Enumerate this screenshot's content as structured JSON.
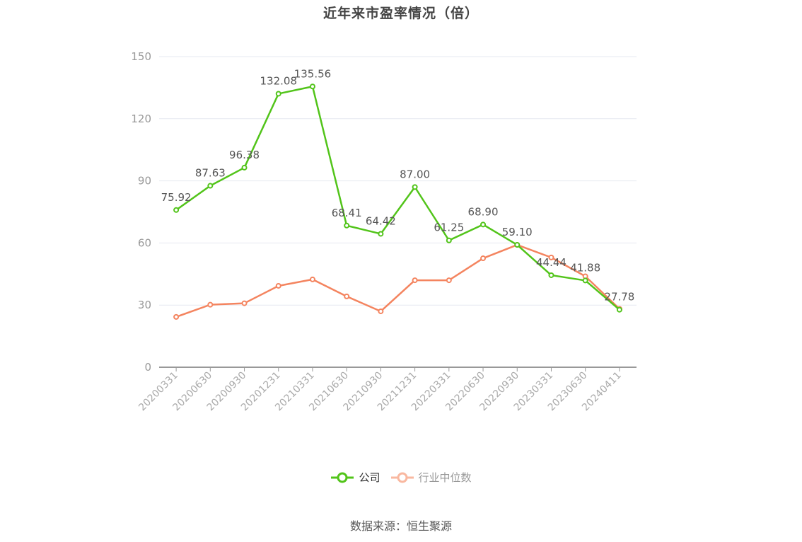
{
  "title": "近年来市盈率情况（倍）",
  "legend": {
    "company": "公司",
    "industry": "行业中位数"
  },
  "source": "数据来源：恒生聚源",
  "colors": {
    "company": "#52c41a",
    "industry": "#f4845f",
    "industry_legend": "#f9b8a0",
    "grid": "#e6e9f0",
    "axis": "#999999"
  },
  "chart_data": {
    "type": "line",
    "title": "近年来市盈率情况（倍）",
    "xlabel": "",
    "ylabel": "",
    "ylim": [
      0,
      150
    ],
    "yticks": [
      0,
      30,
      60,
      90,
      120,
      150
    ],
    "grid": true,
    "legend_position": "bottom",
    "categories": [
      "20200331",
      "20200630",
      "20200930",
      "20201231",
      "20210331",
      "20210630",
      "20210930",
      "20211231",
      "20220331",
      "20220630",
      "20220930",
      "20230331",
      "20230630",
      "20240411"
    ],
    "series": [
      {
        "name": "公司",
        "values": [
          75.92,
          87.63,
          96.38,
          132.08,
          135.56,
          68.41,
          64.42,
          87.0,
          61.25,
          68.9,
          59.1,
          44.44,
          41.88,
          27.78
        ],
        "labels": [
          "75.92",
          "87.63",
          "96.38",
          "132.08",
          "135.56",
          "68.41",
          "64.42",
          "87.00",
          "61.25",
          "68.90",
          "59.10",
          "44.44",
          "41.88",
          "27.78"
        ]
      },
      {
        "name": "行业中位数",
        "values": [
          24.3,
          30.2,
          30.9,
          39.3,
          42.4,
          34.2,
          27.0,
          42.0,
          42.0,
          52.6,
          59.1,
          53.0,
          43.9,
          28.2
        ]
      }
    ]
  }
}
